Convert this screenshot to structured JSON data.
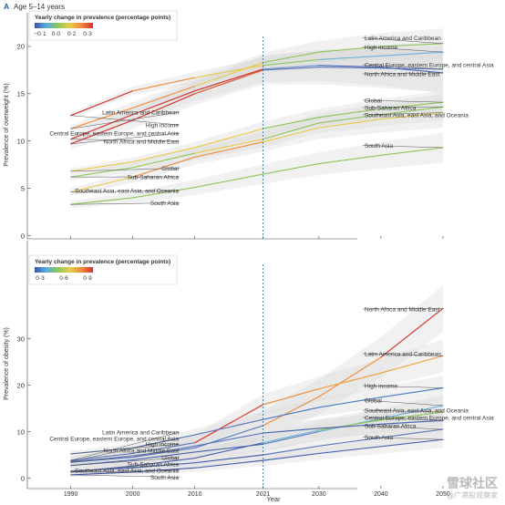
{
  "figure": {
    "panel_letter": "A",
    "panel_title": "Age 5–14 years",
    "x_axis_label": "Year",
    "projection_marker_year": 2021
  },
  "watermark": {
    "main": "雪球社区",
    "sub": "@广港股观察家"
  },
  "chart_data": [
    {
      "type": "line",
      "ylabel": "Prevalence of overweight (%)",
      "xlabel": "",
      "xlim": [
        1983,
        2060
      ],
      "ylim": [
        0,
        22
      ],
      "yticks": [
        0,
        5,
        10,
        15,
        20
      ],
      "xticks": [
        1990,
        2000,
        2010,
        2021,
        2030,
        2040,
        2050
      ],
      "projection_year": 2021,
      "grid": false,
      "legend": {
        "title": "Yearly change in prevalence (percentage points)",
        "tick_labels": [
          "−0·1",
          "0·0",
          "0·2",
          "0·3"
        ],
        "colors": [
          "#3b53a8",
          "#57aee0",
          "#8fc65a",
          "#e8cb4a",
          "#f08c3a",
          "#d7312c"
        ],
        "placement": "top-left"
      },
      "series": [
        {
          "name": "Latin America and Caribbean",
          "start_label": "Latin America and Caribbean",
          "end_label": "Latin America and Caribbean",
          "x": [
            1990,
            2000,
            2010,
            2021,
            2030,
            2040,
            2050
          ],
          "y": [
            11.3,
            13.5,
            15.8,
            18.3,
            19.4,
            20.0,
            20.3
          ],
          "colors": [
            "#f08c3a",
            "#ee8a3c",
            "#e8cb4a",
            "#8fc65a",
            "#8fc65a",
            "#8fc65a"
          ],
          "band": 1.6
        },
        {
          "name": "High income",
          "start_label": "High income",
          "end_label": "High income",
          "x": [
            1990,
            2000,
            2010,
            2021,
            2030,
            2040,
            2050
          ],
          "y": [
            12.7,
            15.3,
            16.7,
            18.0,
            18.6,
            19.0,
            19.4
          ],
          "colors": [
            "#d7312c",
            "#f08c3a",
            "#e8cb4a",
            "#8fc65a",
            "#6fb3d6",
            "#6fb3d6"
          ],
          "band": 1.2
        },
        {
          "name": "Central Europe, eastern Europe, and central Asia",
          "start_label": "Central Europe, eastern Europe, and central Asia",
          "end_label": "Central Europe, eastern Europe, and central Asia",
          "x": [
            1990,
            2000,
            2010,
            2021,
            2030,
            2040,
            2050
          ],
          "y": [
            9.7,
            12.2,
            15.0,
            17.5,
            17.8,
            17.7,
            17.6
          ],
          "colors": [
            "#d7312c",
            "#d7312c",
            "#e35a35",
            "#5a78bd",
            "#5a78bd",
            "#5a78bd"
          ],
          "band": 2.4
        },
        {
          "name": "North Africa and Middle East",
          "start_label": "North Africa and Middle East",
          "end_label": "North Africa and Middle East",
          "x": [
            1990,
            2000,
            2010,
            2021,
            2030,
            2040,
            2050
          ],
          "y": [
            10.2,
            12.8,
            15.3,
            17.6,
            18.0,
            17.8,
            17.2
          ],
          "colors": [
            "#d7312c",
            "#d7312c",
            "#d7312c",
            "#6f91c9",
            "#4a63b0",
            "#4a63b0"
          ],
          "band": 2.2
        },
        {
          "name": "Global",
          "start_label": "Global",
          "end_label": "Global",
          "x": [
            1990,
            2000,
            2010,
            2021,
            2030,
            2040,
            2050
          ],
          "y": [
            6.8,
            7.8,
            9.3,
            11.3,
            12.5,
            13.4,
            14.1
          ],
          "colors": [
            "#e8cb4a",
            "#e8cb4a",
            "#e8cb4a",
            "#8fc65a",
            "#8fc65a",
            "#8fc65a"
          ],
          "band": 1.2
        },
        {
          "name": "Sub-Saharan Africa",
          "start_label": "Sub-Saharan Africa",
          "end_label": "Sub-Saharan Africa",
          "x": [
            1990,
            2000,
            2010,
            2021,
            2030,
            2040,
            2050
          ],
          "y": [
            6.2,
            7.2,
            8.7,
            10.2,
            11.9,
            12.8,
            13.6
          ],
          "colors": [
            "#8fc65a",
            "#8fc65a",
            "#e8cb4a",
            "#8fc65a",
            "#8fc65a",
            "#8fc65a"
          ],
          "band": 1.4
        },
        {
          "name": "Southeast Asia, east Asia, and Oceania",
          "start_label": "Southeast Asia, east Asia, and Oceania",
          "end_label": "Southeast Asia, east Asia, and Oceania",
          "x": [
            1990,
            2000,
            2010,
            2021,
            2030,
            2040,
            2050
          ],
          "y": [
            4.6,
            6.2,
            8.3,
            9.9,
            11.4,
            12.3,
            13.0
          ],
          "colors": [
            "#e8cb4a",
            "#f08c3a",
            "#f08c3a",
            "#e8cb4a",
            "#e8cb4a",
            "#e8cb4a"
          ],
          "band": 1.6
        },
        {
          "name": "South Asia",
          "start_label": "South Asia",
          "end_label": "South Asia",
          "x": [
            1990,
            2000,
            2010,
            2021,
            2030,
            2040,
            2050
          ],
          "y": [
            3.3,
            4.0,
            5.1,
            6.5,
            7.6,
            8.5,
            9.3
          ],
          "colors": [
            "#8fc65a",
            "#8fc65a",
            "#8fc65a",
            "#8fc65a",
            "#8fc65a",
            "#8fc65a"
          ],
          "band": 1.6
        }
      ]
    },
    {
      "type": "line",
      "ylabel": "Prevalence of obesity (%)",
      "xlabel": "Year",
      "xlim": [
        1983,
        2060
      ],
      "ylim": [
        -1,
        40
      ],
      "yticks": [
        0,
        10,
        20,
        30
      ],
      "xticks": [
        1990,
        2000,
        2010,
        2021,
        2030,
        2040,
        2050
      ],
      "projection_year": 2021,
      "grid": false,
      "legend": {
        "title": "Yearly change in prevalence (percentage points)",
        "tick_labels": [
          "0·3",
          "0·6",
          "0·9"
        ],
        "colors": [
          "#3b53a8",
          "#57aee0",
          "#8fc65a",
          "#e8cb4a",
          "#f08c3a",
          "#d7312c"
        ],
        "placement": "top-left"
      },
      "series": [
        {
          "name": "North Africa and Middle East",
          "start_label": "North Africa and Middle East",
          "end_label": "North Africa and Middle East",
          "x": [
            1990,
            2000,
            2010,
            2021,
            2030,
            2040,
            2050
          ],
          "y": [
            3.4,
            4.5,
            6.5,
            11.3,
            17.5,
            26.0,
            36.5
          ],
          "colors": [
            "#5a78bd",
            "#5a78bd",
            "#5a78bd",
            "#f08c3a",
            "#f08c3a",
            "#d7312c"
          ],
          "band": 5.0
        },
        {
          "name": "Latin America and Caribbean",
          "start_label": "Latin America and Caribbean",
          "end_label": "Latin America and Caribbean",
          "x": [
            1990,
            2000,
            2010,
            2021,
            2030,
            2040,
            2050
          ],
          "y": [
            3.8,
            5.3,
            7.6,
            15.8,
            19.2,
            22.6,
            26.3
          ],
          "colors": [
            "#5a78bd",
            "#5a78bd",
            "#d7312c",
            "#f08c3a",
            "#f0a03a",
            "#f0a03a"
          ],
          "band": 3.5
        },
        {
          "name": "High income",
          "start_label": "High income",
          "end_label": "High income",
          "x": [
            1990,
            2000,
            2010,
            2021,
            2030,
            2040,
            2050
          ],
          "y": [
            5.2,
            6.5,
            9.3,
            12.6,
            15.2,
            17.4,
            19.4
          ],
          "colors": [
            "#5a78bd",
            "#5a78bd",
            "#5a78bd",
            "#4a7ac0",
            "#4a7ac0",
            "#4a7ac0"
          ],
          "band": 2.6
        },
        {
          "name": "Global",
          "start_label": "Global",
          "end_label": "Global",
          "x": [
            1990,
            2000,
            2010,
            2021,
            2030,
            2040,
            2050
          ],
          "y": [
            2.7,
            3.9,
            5.6,
            7.3,
            10.0,
            12.8,
            15.6
          ],
          "colors": [
            "#4a63b0",
            "#4a63b0",
            "#4a63b0",
            "#5a78bd",
            "#6fb3d6",
            "#6fb3d6"
          ],
          "band": 2.4
        },
        {
          "name": "Southeast Asia, east Asia, and Oceania",
          "start_label": "Southeast Asia, east Asia, and Oceania",
          "end_label": "Southeast Asia, east Asia, and Oceania",
          "x": [
            1990,
            2000,
            2010,
            2021,
            2030,
            2040,
            2050
          ],
          "y": [
            1.3,
            2.6,
            4.3,
            7.6,
            10.3,
            12.5,
            14.2
          ],
          "colors": [
            "#4a63b0",
            "#4a63b0",
            "#4a63b0",
            "#6fb3d6",
            "#8fc65a",
            "#8fc65a"
          ],
          "band": 3.0
        },
        {
          "name": "Central Europe, eastern Europe, and central Asia",
          "start_label": "Central Europe, eastern Europe, and central Asia",
          "end_label": "Central Europe, eastern Europe, and central Asia",
          "x": [
            1990,
            2000,
            2010,
            2021,
            2030,
            2040,
            2050
          ],
          "y": [
            3.6,
            4.6,
            6.9,
            9.7,
            10.7,
            11.6,
            12.4
          ],
          "colors": [
            "#5a78bd",
            "#5a78bd",
            "#5a78bd",
            "#4a63b0",
            "#4a63b0",
            "#4a63b0"
          ],
          "band": 2.6
        },
        {
          "name": "Sub-Saharan Africa",
          "start_label": "Sub-Saharan Africa",
          "end_label": "Sub-Saharan Africa",
          "x": [
            1990,
            2000,
            2010,
            2021,
            2030,
            2040,
            2050
          ],
          "y": [
            1.5,
            2.2,
            3.3,
            5.0,
            6.9,
            8.7,
            10.5
          ],
          "colors": [
            "#4a63b0",
            "#4a63b0",
            "#4a63b0",
            "#5a78bd",
            "#5a78bd",
            "#5a78bd"
          ],
          "band": 2.0
        },
        {
          "name": "South Asia",
          "start_label": "South Asia",
          "end_label": "South Asia",
          "x": [
            1990,
            2000,
            2010,
            2021,
            2030,
            2040,
            2050
          ],
          "y": [
            0.7,
            1.3,
            2.2,
            3.8,
            5.3,
            6.8,
            8.3
          ],
          "colors": [
            "#3b53a8",
            "#3b53a8",
            "#4a63b0",
            "#4a63b0",
            "#4a63b0",
            "#4a63b0"
          ],
          "band": 1.8
        }
      ]
    }
  ]
}
